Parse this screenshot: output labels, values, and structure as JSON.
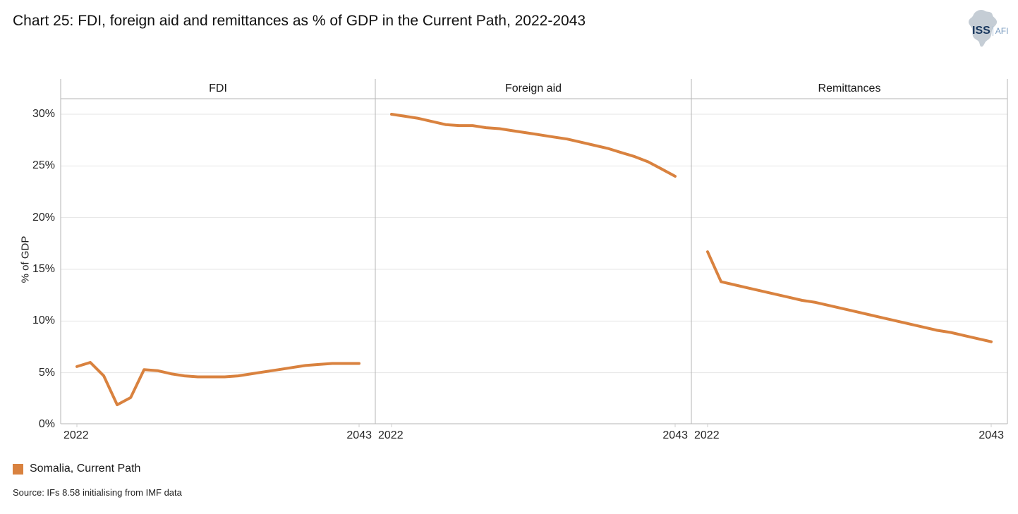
{
  "page": {
    "title": "Chart 25: FDI, foreign aid and remittances as % of GDP in the Current Path, 2022-2043"
  },
  "logo": {
    "org": "ISS",
    "unit": "AFI",
    "africa_icon_color": "#c5cdd5",
    "org_color": "#17365d",
    "unit_color": "#7b9cc0"
  },
  "legend": {
    "label": "Somalia, Current Path",
    "swatch_color": "#D9823F"
  },
  "source": "Source: IFs 8.58 initialising from IMF data",
  "chart_data": {
    "type": "line",
    "title": "Chart 25: FDI, foreign aid and remittances as % of GDP in the Current Path, 2022-2043",
    "ylabel": "% of GDP",
    "ylim": [
      0,
      31.5
    ],
    "yticks": [
      0,
      5,
      10,
      15,
      20,
      25,
      30
    ],
    "ytick_labels": [
      "0%",
      "5%",
      "10%",
      "15%",
      "20%",
      "25%",
      "30%"
    ],
    "x": [
      2022,
      2023,
      2024,
      2025,
      2026,
      2027,
      2028,
      2029,
      2030,
      2031,
      2032,
      2033,
      2034,
      2035,
      2036,
      2037,
      2038,
      2039,
      2040,
      2041,
      2042,
      2043
    ],
    "x_axis_labels": [
      "2022",
      "2043"
    ],
    "grid": true,
    "legend_position": "bottom-left",
    "series_name": "Somalia, Current Path",
    "series_color": "#D9823F",
    "grid_color": "#e4e4e4",
    "frame_color": "#b5b5b5",
    "panels": [
      {
        "title": "FDI",
        "values": [
          5.6,
          6.0,
          4.7,
          1.9,
          2.6,
          5.3,
          5.2,
          4.9,
          4.7,
          4.6,
          4.6,
          4.6,
          4.7,
          4.9,
          5.1,
          5.3,
          5.5,
          5.7,
          5.8,
          5.9,
          5.9,
          5.9
        ]
      },
      {
        "title": "Foreign aid",
        "values": [
          30.0,
          29.8,
          29.6,
          29.3,
          29.0,
          28.9,
          28.9,
          28.7,
          28.6,
          28.4,
          28.2,
          28.0,
          27.8,
          27.6,
          27.3,
          27.0,
          26.7,
          26.3,
          25.9,
          25.4,
          24.7,
          24.0
        ]
      },
      {
        "title": "Remittances",
        "values": [
          16.7,
          13.8,
          13.5,
          13.2,
          12.9,
          12.6,
          12.3,
          12.0,
          11.8,
          11.5,
          11.2,
          10.9,
          10.6,
          10.3,
          10.0,
          9.7,
          9.4,
          9.1,
          8.9,
          8.6,
          8.3,
          8.0
        ]
      }
    ]
  }
}
